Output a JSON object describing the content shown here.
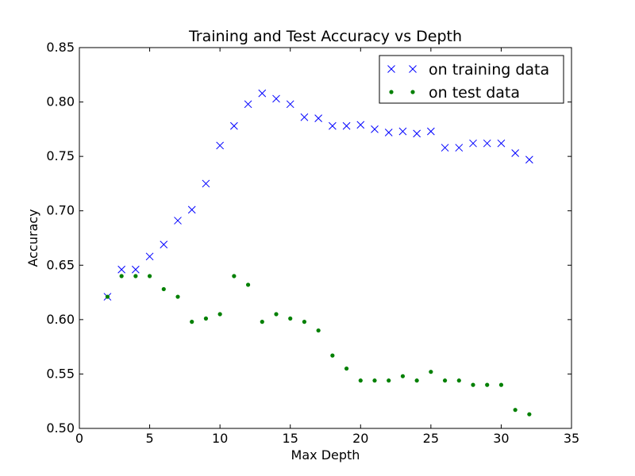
{
  "chart_data": {
    "type": "scatter",
    "title": "Training and Test Accuracy vs Depth",
    "xlabel": "Max Depth",
    "ylabel": "Accuracy",
    "xlim": [
      0,
      35
    ],
    "ylim": [
      0.5,
      0.85
    ],
    "xticks": [
      "0",
      "5",
      "10",
      "15",
      "20",
      "25",
      "30",
      "35"
    ],
    "yticks": [
      "0.50",
      "0.55",
      "0.60",
      "0.65",
      "0.70",
      "0.75",
      "0.80",
      "0.85"
    ],
    "grid": false,
    "legend_position": "top-right",
    "series": [
      {
        "name": "on training data",
        "marker": "x",
        "color": "#0000ff",
        "x": [
          2,
          3,
          4,
          5,
          6,
          7,
          8,
          9,
          10,
          11,
          12,
          13,
          14,
          15,
          16,
          17,
          18,
          19,
          20,
          21,
          22,
          23,
          24,
          25,
          26,
          27,
          28,
          29,
          30,
          31,
          32
        ],
        "y": [
          0.621,
          0.646,
          0.646,
          0.658,
          0.669,
          0.691,
          0.701,
          0.725,
          0.76,
          0.778,
          0.798,
          0.808,
          0.803,
          0.798,
          0.786,
          0.785,
          0.778,
          0.778,
          0.779,
          0.775,
          0.772,
          0.773,
          0.771,
          0.773,
          0.758,
          0.758,
          0.762,
          0.762,
          0.762,
          0.753,
          0.747
        ]
      },
      {
        "name": "on test data",
        "marker": "dot",
        "color": "#008000",
        "x": [
          2,
          3,
          4,
          5,
          6,
          7,
          8,
          9,
          10,
          11,
          12,
          13,
          14,
          15,
          16,
          17,
          18,
          19,
          20,
          21,
          22,
          23,
          24,
          25,
          26,
          27,
          28,
          29,
          30,
          31,
          32
        ],
        "y": [
          0.621,
          0.64,
          0.64,
          0.64,
          0.628,
          0.621,
          0.598,
          0.601,
          0.605,
          0.64,
          0.632,
          0.598,
          0.605,
          0.601,
          0.598,
          0.59,
          0.567,
          0.555,
          0.544,
          0.544,
          0.544,
          0.548,
          0.544,
          0.552,
          0.544,
          0.544,
          0.54,
          0.54,
          0.54,
          0.517,
          0.513
        ]
      }
    ]
  }
}
